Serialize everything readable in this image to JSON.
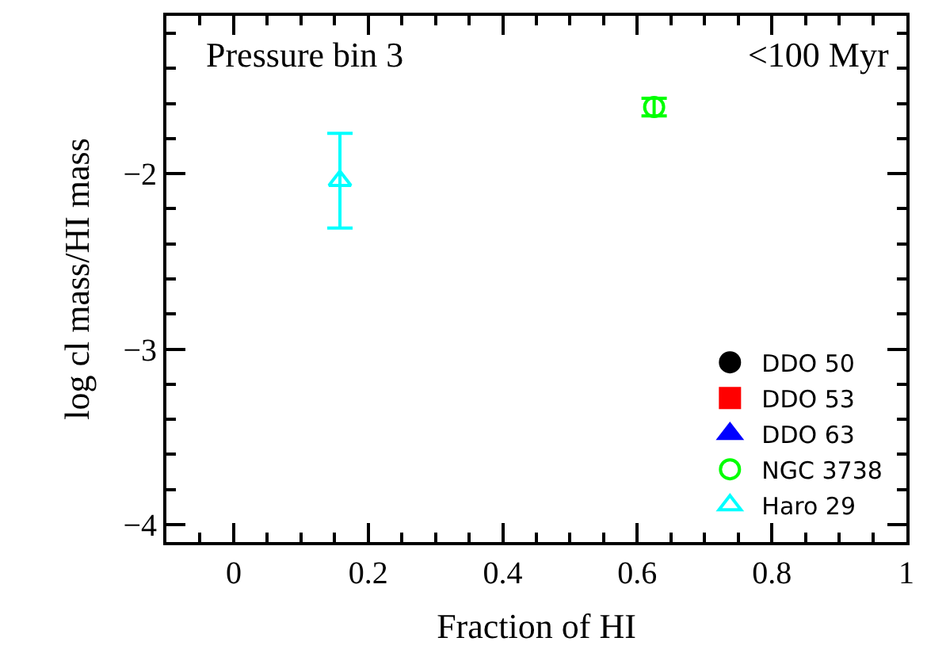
{
  "chart_data": {
    "type": "scatter",
    "xlabel": "Fraction of HI",
    "ylabel": "log cl mass/HI mass",
    "annotations": [
      "Pressure bin 3",
      "<100 Myr"
    ],
    "xlim": [
      -0.1,
      1
    ],
    "xticks": [
      0,
      0.2,
      0.4,
      0.6,
      0.8,
      1
    ],
    "ylim": [
      -4.1,
      -1.1
    ],
    "yticks": [
      -4,
      -3,
      -2
    ],
    "legend": "bottom right",
    "series": [
      {
        "name": "DDO 50",
        "color": "#000000",
        "marker": "circle"
      },
      {
        "name": "DDO 53",
        "color": "#ff0000",
        "marker": "square"
      },
      {
        "name": "DDO 63",
        "color": "#0000ff",
        "marker": "triangle"
      },
      {
        "name": "NGC 3738",
        "color": "#00ff00",
        "marker": "circle-open",
        "x": [
          0.625
        ],
        "values": [
          -1.62
        ],
        "errors": [
          0.05
        ]
      },
      {
        "name": "Haro 29",
        "color": "#00ffff",
        "marker": "triangle-open",
        "x": [
          0.158
        ],
        "values": [
          -2.04
        ],
        "errors": [
          0.27
        ]
      }
    ]
  }
}
